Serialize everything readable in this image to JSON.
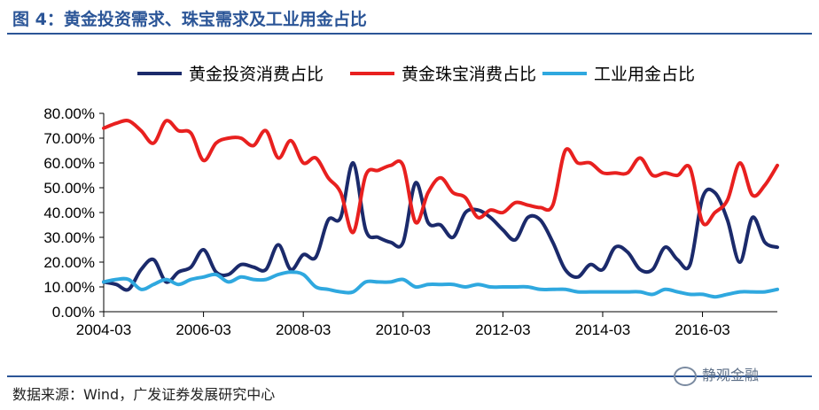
{
  "header": {
    "title": "图 4：黄金投资需求、珠宝需求及工业用金占比"
  },
  "footer": {
    "source": "数据来源：Wind，广发证券发展研究中心"
  },
  "watermark": {
    "text": "静观金融"
  },
  "chart_data": {
    "type": "line",
    "title": "",
    "xlabel": "",
    "ylabel": "",
    "xlim": [
      "2004-03",
      "2017-09"
    ],
    "ylim": [
      0,
      80
    ],
    "y_tick_labels": [
      "0.00%",
      "10.00%",
      "20.00%",
      "30.00%",
      "40.00%",
      "50.00%",
      "60.00%",
      "70.00%",
      "80.00%"
    ],
    "x_tick_labels": [
      "2004-03",
      "2006-03",
      "2008-03",
      "2010-03",
      "2012-03",
      "2014-03",
      "2016-03"
    ],
    "grid": false,
    "legend_position": "top",
    "x": [
      "2004-03",
      "2004-06",
      "2004-09",
      "2004-12",
      "2005-03",
      "2005-06",
      "2005-09",
      "2005-12",
      "2006-03",
      "2006-06",
      "2006-09",
      "2006-12",
      "2007-03",
      "2007-06",
      "2007-09",
      "2007-12",
      "2008-03",
      "2008-06",
      "2008-09",
      "2008-12",
      "2009-03",
      "2009-06",
      "2009-09",
      "2009-12",
      "2010-03",
      "2010-06",
      "2010-09",
      "2010-12",
      "2011-03",
      "2011-06",
      "2011-09",
      "2011-12",
      "2012-03",
      "2012-06",
      "2012-09",
      "2012-12",
      "2013-03",
      "2013-06",
      "2013-09",
      "2013-12",
      "2014-03",
      "2014-06",
      "2014-09",
      "2014-12",
      "2015-03",
      "2015-06",
      "2015-09",
      "2015-12",
      "2016-03",
      "2016-06",
      "2016-09",
      "2016-12",
      "2017-03",
      "2017-06",
      "2017-09"
    ],
    "series": [
      {
        "name": "黄金投资消费占比",
        "color": "#1b2a6b",
        "values": [
          12,
          11,
          9,
          17,
          21,
          12,
          16,
          18,
          25,
          16,
          15,
          19,
          18,
          17,
          27,
          17,
          23,
          22,
          37,
          38,
          60,
          33,
          30,
          28,
          28,
          52,
          36,
          35,
          30,
          40,
          41,
          38,
          33,
          29,
          38,
          37,
          28,
          17,
          14,
          19,
          17,
          26,
          24,
          17,
          17,
          26,
          21,
          19,
          46,
          48,
          37,
          20,
          38,
          28,
          26
        ]
      },
      {
        "name": "黄金珠宝消费占比",
        "color": "#e8201f",
        "values": [
          74,
          76,
          77,
          73,
          68,
          77,
          73,
          72,
          61,
          68,
          70,
          70,
          67,
          73,
          62,
          69,
          60,
          62,
          54,
          48,
          32,
          55,
          57,
          59,
          59,
          36,
          48,
          54,
          48,
          46,
          38,
          41,
          40,
          44,
          43,
          42,
          43,
          65,
          60,
          60,
          56,
          56,
          56,
          62,
          55,
          56,
          55,
          58,
          36,
          40,
          45,
          60,
          47,
          51,
          59
        ]
      },
      {
        "name": "工业用金占比",
        "color": "#2fa8df",
        "values": [
          12,
          13,
          13,
          9,
          11,
          13,
          11,
          13,
          14,
          15,
          12,
          14,
          13,
          13,
          15,
          16,
          15,
          10,
          9,
          8,
          8,
          12,
          12,
          12,
          13,
          10,
          11,
          11,
          11,
          10,
          11,
          10,
          10,
          10,
          10,
          9,
          9,
          9,
          8,
          8,
          8,
          8,
          8,
          8,
          7,
          9,
          8,
          7,
          7,
          6,
          7,
          8,
          8,
          8,
          9
        ]
      }
    ]
  }
}
